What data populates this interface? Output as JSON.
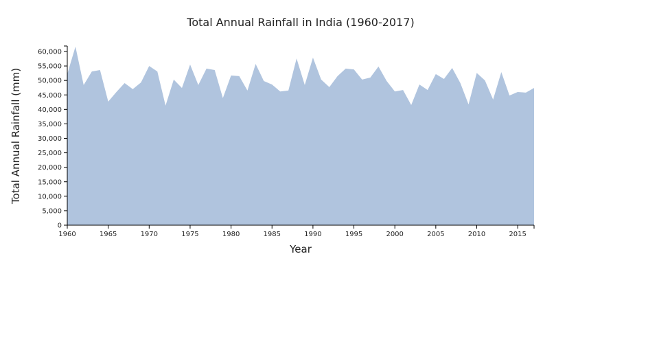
{
  "chart_data": {
    "type": "area",
    "title": "Total Annual Rainfall in India (1960-2017)",
    "xlabel": "Year",
    "ylabel": "Total Annual Rainfall (mm)",
    "xlim": [
      1960,
      2017
    ],
    "ylim": [
      0,
      62000
    ],
    "xticks": [
      1960,
      1965,
      1970,
      1975,
      1980,
      1985,
      1990,
      1995,
      2000,
      2005,
      2010,
      2015
    ],
    "yticks": [
      0,
      5000,
      10000,
      15000,
      20000,
      25000,
      30000,
      35000,
      40000,
      45000,
      50000,
      55000,
      60000
    ],
    "ytick_labels": [
      "0",
      "5,000",
      "10,000",
      "15,000",
      "20,000",
      "25,000",
      "30,000",
      "35,000",
      "40,000",
      "45,000",
      "50,000",
      "55,000",
      "60,000"
    ],
    "fill_color": "#b0c4de",
    "x": [
      1960,
      1961,
      1962,
      1963,
      1964,
      1965,
      1966,
      1967,
      1968,
      1969,
      1970,
      1971,
      1972,
      1973,
      1974,
      1975,
      1976,
      1977,
      1978,
      1979,
      1980,
      1981,
      1982,
      1983,
      1984,
      1985,
      1986,
      1987,
      1988,
      1989,
      1990,
      1991,
      1992,
      1993,
      1994,
      1995,
      1996,
      1997,
      1998,
      1999,
      2000,
      2001,
      2002,
      2003,
      2004,
      2005,
      2006,
      2007,
      2008,
      2009,
      2010,
      2011,
      2012,
      2013,
      2014,
      2015,
      2016,
      2017
    ],
    "values": [
      52200,
      61700,
      48400,
      53100,
      53600,
      42700,
      46000,
      49100,
      47000,
      49300,
      55000,
      53100,
      41300,
      50300,
      47400,
      55500,
      48400,
      54100,
      53600,
      43900,
      51700,
      51500,
      46500,
      55700,
      49800,
      48600,
      46200,
      46500,
      57600,
      48400,
      57900,
      50300,
      47700,
      51500,
      54100,
      53800,
      50300,
      51000,
      54800,
      49800,
      46200,
      46700,
      41500,
      48600,
      46700,
      52200,
      50500,
      54300,
      49100,
      41700,
      52600,
      50000,
      43400,
      52900,
      44800,
      46000,
      45800,
      47400
    ]
  }
}
